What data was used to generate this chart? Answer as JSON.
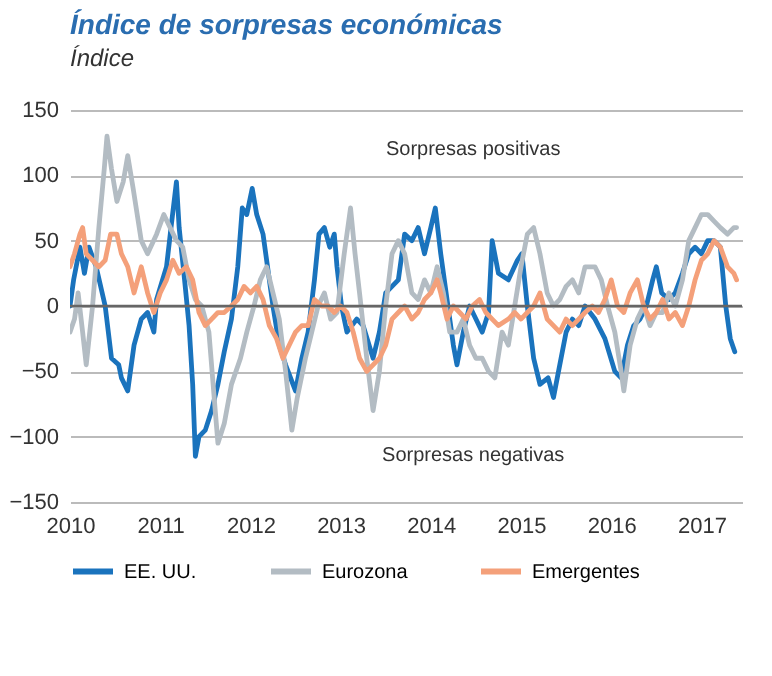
{
  "chart_data": {
    "type": "line",
    "title": "Índice de sorpresas económicas",
    "subtitle": "Índice",
    "xlim": [
      2010,
      2017.45
    ],
    "xticks": [
      2010,
      2011,
      2012,
      2013,
      2014,
      2015,
      2016,
      2017
    ],
    "ylim": [
      -150,
      150
    ],
    "yticks": [
      -150,
      -100,
      -50,
      0,
      50,
      100,
      150
    ],
    "grid": "y",
    "legend": "bottom",
    "ref_lines": [
      {
        "axis": "y",
        "value": 0,
        "color": "#666666"
      }
    ],
    "annotations": [
      "Sorpresas positivas",
      "Sorpresas negativas"
    ],
    "series": [
      {
        "name": "EE. UU.",
        "color": "#1a73bd",
        "x": [
          2010,
          2010.04,
          2010.11,
          2010.16,
          2010.21,
          2010.29,
          2010.39,
          2010.46,
          2010.54,
          2010.57,
          2010.64,
          2010.71,
          2010.79,
          2010.86,
          2010.93,
          2010.96,
          2011.07,
          2011.12,
          2011.18,
          2011.21,
          2011.27,
          2011.32,
          2011.36,
          2011.39,
          2011.43,
          2011.5,
          2011.57,
          2011.64,
          2011.71,
          2011.79,
          2011.86,
          2011.91,
          2011.96,
          2012.02,
          2012.07,
          2012.14,
          2012.19,
          2012.25,
          2012.32,
          2012.39,
          2012.5,
          2012.57,
          2012.64,
          2012.71,
          2012.76,
          2012.82,
          2012.88,
          2012.93,
          2012.96,
          2013.01,
          2013.07,
          2013.18,
          2013.25,
          2013.36,
          2013.43,
          2013.5,
          2013.64,
          2013.71,
          2013.79,
          2013.86,
          2013.93,
          2014,
          2014.05,
          2014.11,
          2014.18,
          2014.25,
          2014.29,
          2014.36,
          2014.43,
          2014.5,
          2014.57,
          2014.64,
          2014.68,
          2014.75,
          2014.86,
          2014.96,
          2015.01,
          2015.07,
          2015.14,
          2015.21,
          2015.3,
          2015.36,
          2015.43,
          2015.5,
          2015.57,
          2015.64,
          2015.71,
          2015.82,
          2015.93,
          2016.04,
          2016.11,
          2016.18,
          2016.25,
          2016.32,
          2016.39,
          2016.46,
          2016.5,
          2016.56,
          2016.64,
          2016.71,
          2016.79,
          2016.86,
          2016.93,
          2017,
          2017.07,
          2017.14,
          2017.21,
          2017.27,
          2017.32,
          2017.37
        ],
        "values": [
          0,
          20,
          45,
          25,
          45,
          30,
          0,
          -40,
          -45,
          -55,
          -65,
          -30,
          -10,
          -5,
          -20,
          5,
          30,
          60,
          95,
          60,
          20,
          -15,
          -60,
          -115,
          -100,
          -95,
          -80,
          -60,
          -35,
          -10,
          30,
          75,
          70,
          90,
          70,
          55,
          30,
          0,
          -30,
          -45,
          -65,
          -40,
          -20,
          20,
          55,
          60,
          45,
          55,
          30,
          0,
          -20,
          -10,
          -15,
          -40,
          -20,
          10,
          20,
          55,
          50,
          60,
          40,
          60,
          75,
          40,
          5,
          -30,
          -45,
          -20,
          0,
          -10,
          -20,
          -5,
          50,
          25,
          20,
          35,
          40,
          0,
          -40,
          -60,
          -55,
          -70,
          -45,
          -20,
          -10,
          -15,
          0,
          -10,
          -25,
          -50,
          -55,
          -30,
          -15,
          -10,
          0,
          20,
          30,
          10,
          5,
          10,
          25,
          40,
          45,
          40,
          50,
          50,
          45,
          0,
          -25,
          -35
        ]
      },
      {
        "name": "Eurozona",
        "color": "#b3bcc3",
        "x": [
          2010,
          2010.05,
          2010.09,
          2010.14,
          2010.18,
          2010.25,
          2010.32,
          2010.38,
          2010.41,
          2010.46,
          2010.52,
          2010.59,
          2010.64,
          2010.7,
          2010.79,
          2010.86,
          2010.96,
          2011.04,
          2011.11,
          2011.18,
          2011.25,
          2011.32,
          2011.39,
          2011.46,
          2011.54,
          2011.61,
          2011.64,
          2011.71,
          2011.79,
          2011.89,
          2011.96,
          2012.04,
          2012.11,
          2012.18,
          2012.25,
          2012.32,
          2012.39,
          2012.46,
          2012.52,
          2012.61,
          2012.68,
          2012.75,
          2012.82,
          2012.89,
          2012.96,
          2013.04,
          2013.11,
          2013.16,
          2013.21,
          2013.29,
          2013.36,
          2013.43,
          2013.5,
          2013.57,
          2013.64,
          2013.71,
          2013.79,
          2013.86,
          2013.93,
          2014,
          2014.07,
          2014.14,
          2014.21,
          2014.29,
          2014.36,
          2014.43,
          2014.5,
          2014.57,
          2014.64,
          2014.71,
          2014.79,
          2014.86,
          2014.93,
          2015,
          2015.07,
          2015.14,
          2015.21,
          2015.29,
          2015.36,
          2015.43,
          2015.5,
          2015.57,
          2015.64,
          2015.71,
          2015.82,
          2015.89,
          2015.96,
          2016.04,
          2016.11,
          2016.14,
          2016.21,
          2016.29,
          2016.36,
          2016.43,
          2016.5,
          2016.57,
          2016.64,
          2016.71,
          2016.79,
          2016.86,
          2016.93,
          2017,
          2017.07,
          2017.14,
          2017.21,
          2017.29,
          2017.36,
          2017.39
        ],
        "values": [
          -20,
          -10,
          10,
          -20,
          -45,
          0,
          60,
          105,
          130,
          105,
          80,
          95,
          115,
          90,
          50,
          40,
          55,
          70,
          60,
          50,
          45,
          20,
          5,
          0,
          -20,
          -80,
          -105,
          -90,
          -60,
          -40,
          -20,
          0,
          20,
          30,
          10,
          -10,
          -50,
          -95,
          -70,
          -40,
          -20,
          0,
          10,
          -10,
          -5,
          40,
          75,
          40,
          10,
          -40,
          -80,
          -50,
          0,
          40,
          50,
          40,
          10,
          5,
          20,
          10,
          30,
          10,
          -20,
          -20,
          -10,
          -30,
          -40,
          -40,
          -50,
          -55,
          -20,
          -30,
          0,
          30,
          55,
          60,
          40,
          10,
          0,
          5,
          15,
          20,
          10,
          30,
          30,
          20,
          0,
          -20,
          -50,
          -65,
          -30,
          -10,
          0,
          -15,
          -5,
          -5,
          10,
          0,
          20,
          50,
          60,
          70,
          70,
          65,
          60,
          55,
          60,
          60
        ]
      },
      {
        "name": "Emergentes",
        "color": "#f4a07a",
        "x": [
          2010,
          2010.05,
          2010.11,
          2010.14,
          2010.18,
          2010.25,
          2010.32,
          2010.39,
          2010.45,
          2010.52,
          2010.57,
          2010.64,
          2010.71,
          2010.79,
          2010.86,
          2010.93,
          2011,
          2011.07,
          2011.14,
          2011.21,
          2011.29,
          2011.36,
          2011.43,
          2011.5,
          2011.57,
          2011.64,
          2011.71,
          2011.79,
          2011.86,
          2011.93,
          2012,
          2012.07,
          2012.14,
          2012.21,
          2012.29,
          2012.36,
          2012.43,
          2012.5,
          2012.57,
          2012.64,
          2012.71,
          2012.79,
          2012.86,
          2012.93,
          2013,
          2013.07,
          2013.14,
          2013.21,
          2013.29,
          2013.36,
          2013.43,
          2013.5,
          2013.57,
          2013.64,
          2013.71,
          2013.79,
          2013.86,
          2013.93,
          2014,
          2014.07,
          2014.11,
          2014.18,
          2014.25,
          2014.32,
          2014.39,
          2014.46,
          2014.54,
          2014.61,
          2014.68,
          2014.75,
          2014.86,
          2014.93,
          2015,
          2015.07,
          2015.14,
          2015.21,
          2015.29,
          2015.36,
          2015.43,
          2015.5,
          2015.57,
          2015.64,
          2015.71,
          2015.79,
          2015.86,
          2015.93,
          2016,
          2016.07,
          2016.14,
          2016.21,
          2016.29,
          2016.36,
          2016.43,
          2016.5,
          2016.57,
          2016.64,
          2016.71,
          2016.79,
          2016.86,
          2016.93,
          2017,
          2017.07,
          2017.14,
          2017.21,
          2017.29,
          2017.36,
          2017.39
        ],
        "values": [
          30,
          40,
          55,
          60,
          40,
          35,
          30,
          35,
          55,
          55,
          40,
          30,
          10,
          30,
          10,
          -5,
          10,
          20,
          35,
          25,
          30,
          20,
          -5,
          -15,
          -10,
          -5,
          -5,
          0,
          5,
          15,
          10,
          15,
          5,
          -15,
          -25,
          -40,
          -30,
          -20,
          -15,
          -15,
          5,
          0,
          0,
          -5,
          0,
          -5,
          -20,
          -40,
          -50,
          -45,
          -40,
          -30,
          -10,
          -5,
          0,
          -10,
          -5,
          5,
          10,
          20,
          10,
          -10,
          0,
          -5,
          -10,
          0,
          5,
          -5,
          -10,
          -15,
          -10,
          -5,
          -10,
          -5,
          0,
          10,
          -10,
          -15,
          -20,
          -10,
          -15,
          -10,
          -5,
          0,
          -5,
          5,
          20,
          0,
          -5,
          10,
          20,
          0,
          -10,
          -5,
          5,
          -10,
          -5,
          -15,
          0,
          20,
          35,
          40,
          50,
          45,
          30,
          25,
          20
        ]
      }
    ]
  }
}
